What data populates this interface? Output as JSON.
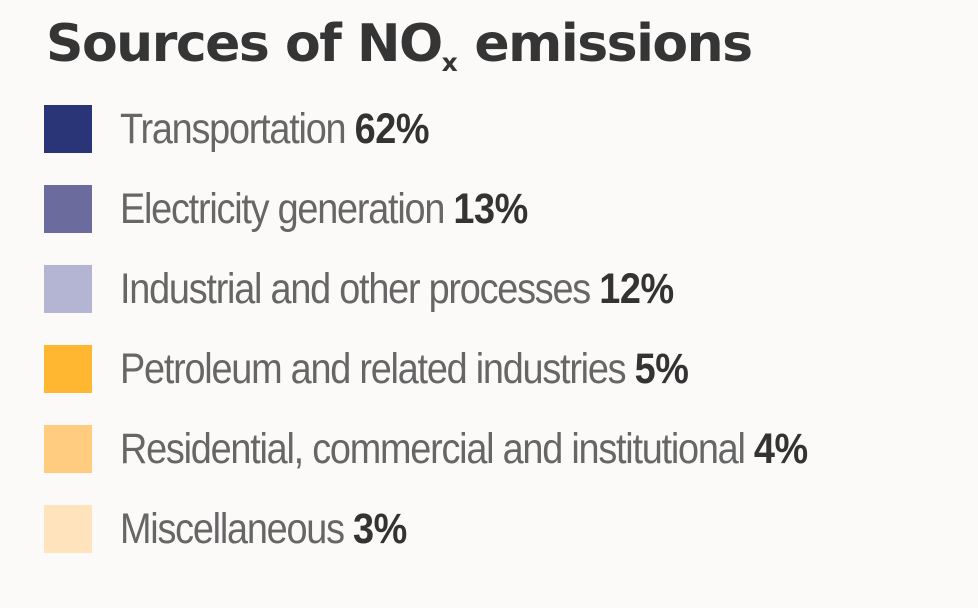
{
  "chart_data": {
    "type": "table",
    "title": "Sources of NO",
    "title_subscript": "x",
    "title_suffix": " emissions",
    "legend_placement": "left",
    "items": [
      {
        "label": "Transportation",
        "value_text": "62%",
        "value": 62,
        "color": "#293576"
      },
      {
        "label": "Electricity generation",
        "value_text": "13%",
        "value": 13,
        "color": "#6b6b9e"
      },
      {
        "label": "Industrial and other processes",
        "value_text": "12%",
        "value": 12,
        "color": "#b4b4d3"
      },
      {
        "label": "Petroleum and related industries",
        "value_text": "5%",
        "value": 5,
        "color": "#ffb631"
      },
      {
        "label": "Residential, commercial and institutional",
        "value_text": "4%",
        "value": 4,
        "color": "#ffcc80"
      },
      {
        "label": "Miscellaneous",
        "value_text": "3%",
        "value": 3,
        "color": "#ffe3bd"
      }
    ]
  }
}
